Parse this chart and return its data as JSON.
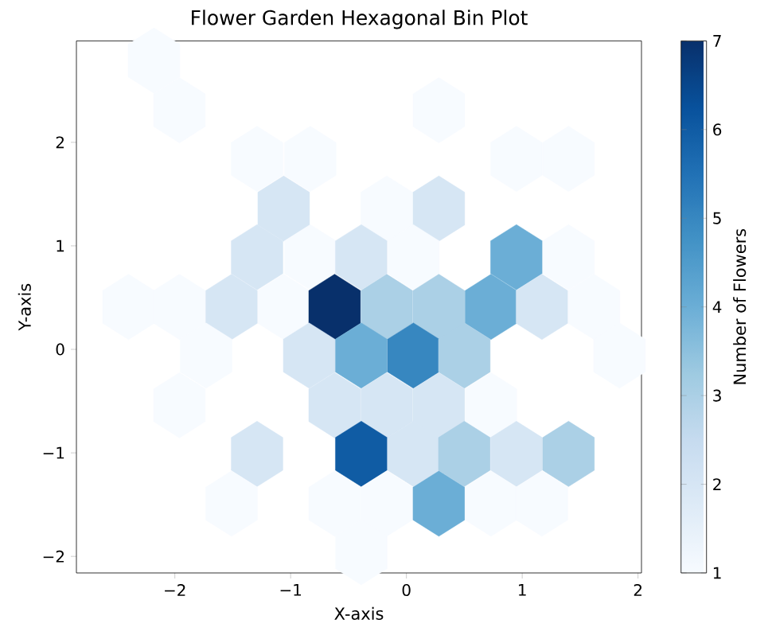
{
  "chart_data": {
    "type": "scatter",
    "title": "Flower Garden Hexagonal Bin Plot",
    "xlabel": "X-axis",
    "ylabel": "Y-axis",
    "clabel": "Number of Flowers",
    "x": [
      -2.18,
      -1.96,
      0.28,
      -1.29,
      -0.83,
      0.95,
      1.4,
      -1.06,
      -0.17,
      0.28,
      -1.29,
      -0.83,
      -0.39,
      0.06,
      0.95,
      1.4,
      -2.4,
      -1.96,
      -1.51,
      -1.06,
      -0.62,
      -0.17,
      0.28,
      0.73,
      1.17,
      1.62,
      -1.73,
      -0.84,
      -0.39,
      0.06,
      0.5,
      1.84,
      -1.96,
      -0.62,
      -0.17,
      0.28,
      0.73,
      -1.29,
      -0.39,
      0.06,
      0.5,
      0.95,
      1.4,
      -1.51,
      -0.62,
      -0.17,
      0.28,
      0.73,
      1.17,
      -0.39
    ],
    "values": [
      2.79,
      2.31,
      2.31,
      1.84,
      1.84,
      1.84,
      1.84,
      1.36,
      1.36,
      1.36,
      0.89,
      0.89,
      0.89,
      0.89,
      0.89,
      0.89,
      0.41,
      0.41,
      0.41,
      0.41,
      0.41,
      0.41,
      0.41,
      0.41,
      0.41,
      0.41,
      -0.06,
      -0.06,
      -0.06,
      -0.06,
      -0.06,
      -0.06,
      -0.54,
      -0.54,
      -0.54,
      -0.54,
      -0.54,
      -1.01,
      -1.01,
      -1.01,
      -1.01,
      -1.01,
      -1.01,
      -1.49,
      -1.49,
      -1.49,
      -1.49,
      -1.49,
      -1.49,
      -1.96
    ],
    "cvalues": [
      1,
      1,
      1,
      1,
      1,
      1,
      1,
      2,
      1,
      2,
      2,
      1,
      2,
      1,
      4,
      1,
      1,
      1,
      2,
      1,
      7,
      3,
      3,
      4,
      2,
      1,
      1,
      2,
      4,
      5,
      3,
      1,
      1,
      2,
      2,
      2,
      1,
      2,
      6,
      2,
      3,
      2,
      3,
      1,
      1,
      1,
      4,
      1,
      1,
      1
    ],
    "xlim": [
      -2.85,
      2.03
    ],
    "ylim": [
      -2.16,
      2.98
    ],
    "xticks": [
      {
        "value": -2,
        "label": "−2"
      },
      {
        "value": -1,
        "label": "−1"
      },
      0,
      1,
      2
    ],
    "yticks": [
      {
        "value": -2,
        "label": "−2"
      },
      {
        "value": -1,
        "label": "−1"
      },
      0,
      1,
      2
    ],
    "clim": [
      1,
      7
    ],
    "cticks": [
      1,
      2,
      3,
      4,
      5,
      6,
      7
    ]
  }
}
